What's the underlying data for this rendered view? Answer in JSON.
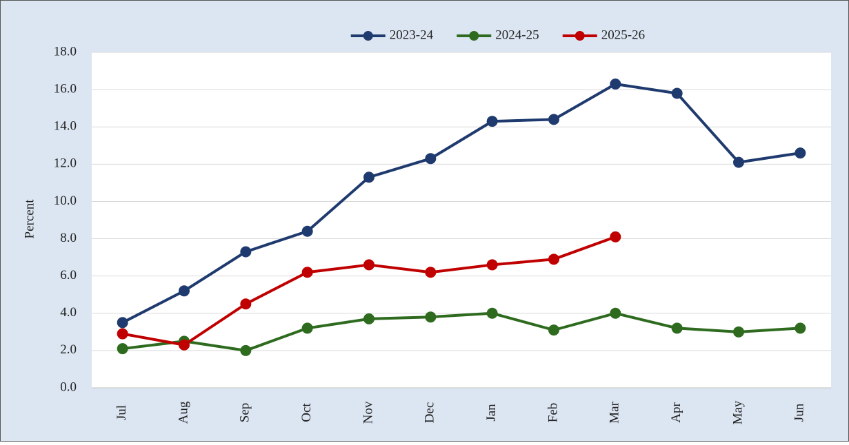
{
  "chart_data": {
    "type": "line",
    "y_label": "Percent",
    "categories": [
      "Jul",
      "Aug",
      "Sep",
      "Oct",
      "Nov",
      "Dec",
      "Jan",
      "Feb",
      "Mar",
      "Apr",
      "May",
      "Jun"
    ],
    "series": [
      {
        "name": "2023-24",
        "color": "#1f3a6e",
        "values": [
          3.5,
          5.2,
          7.3,
          8.4,
          11.3,
          12.3,
          14.3,
          14.4,
          16.3,
          15.8,
          12.1,
          12.6
        ]
      },
      {
        "name": "2024-25",
        "color": "#2e6b1f",
        "values": [
          2.1,
          2.5,
          2.0,
          3.2,
          3.7,
          3.8,
          4.0,
          3.1,
          4.0,
          3.2,
          3.0,
          3.2
        ]
      },
      {
        "name": "2025-26",
        "color": "#c00000",
        "values": [
          2.9,
          2.3,
          4.5,
          6.2,
          6.6,
          6.2,
          6.6,
          6.9,
          8.1,
          null,
          null,
          null
        ]
      }
    ],
    "ylim": [
      0,
      18
    ],
    "yticks": [
      {
        "value": 0,
        "label": "0.0"
      },
      {
        "value": 2,
        "label": "2.0"
      },
      {
        "value": 4,
        "label": "4.0"
      },
      {
        "value": 6,
        "label": "6.0"
      },
      {
        "value": 8,
        "label": "8.0"
      },
      {
        "value": 10,
        "label": "10.0"
      },
      {
        "value": 12,
        "label": "12.0"
      },
      {
        "value": 14,
        "label": "14.0"
      },
      {
        "value": 16,
        "label": "16.0"
      },
      {
        "value": 18,
        "label": "18.0"
      }
    ],
    "grid": true,
    "legend": "top"
  }
}
